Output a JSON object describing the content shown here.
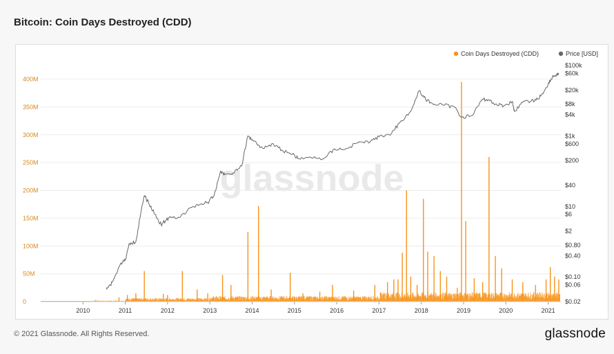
{
  "header": {
    "title": "Bitcoin: Coin Days Destroyed (CDD)"
  },
  "footer": {
    "copyright": "© 2021 Glassnode. All Rights Reserved.",
    "logo_text": "glassnode"
  },
  "watermark": "glassnode",
  "colors": {
    "cdd": "#f7931a",
    "price": "#666666",
    "left_axis": "#d8891f",
    "grid": "#ececec"
  },
  "chart_data": {
    "type": "line",
    "title": "Bitcoin: Coin Days Destroyed (CDD)",
    "legend": {
      "placement": "top-right",
      "entries": [
        "Coin Days Destroyed (CDD)",
        "Price [USD]"
      ]
    },
    "x_ticks": [
      "2010",
      "2011",
      "2012",
      "2013",
      "2014",
      "2015",
      "2016",
      "2017",
      "2018",
      "2019",
      "2020",
      "2021"
    ],
    "xlim": [
      2009.0,
      2021.3
    ],
    "y_left": {
      "ticks": [
        "0",
        "50M",
        "100M",
        "150M",
        "200M",
        "250M",
        "300M",
        "350M",
        "400M"
      ],
      "ylim": [
        0,
        400000000
      ]
    },
    "y_right": {
      "scale": "log",
      "ticks": [
        "$0.02",
        "$0.06",
        "$0.10",
        "$0.40",
        "$0.80",
        "$2",
        "$6",
        "$10",
        "$40",
        "$200",
        "$600",
        "$1k",
        "$4k",
        "$8k",
        "$20k",
        "$60k",
        "$100k"
      ]
    },
    "series": [
      {
        "name": "Coin Days Destroyed (CDD)",
        "axis": "left",
        "spikes": [
          [
            2010.3,
            3000000
          ],
          [
            2010.85,
            8000000
          ],
          [
            2011.05,
            12000000
          ],
          [
            2011.25,
            15000000
          ],
          [
            2011.45,
            55000000
          ],
          [
            2011.9,
            14000000
          ],
          [
            2012.0,
            12000000
          ],
          [
            2012.35,
            55000000
          ],
          [
            2012.7,
            22000000
          ],
          [
            2012.95,
            15000000
          ],
          [
            2013.3,
            48000000
          ],
          [
            2013.5,
            30000000
          ],
          [
            2013.9,
            125000000
          ],
          [
            2014.15,
            172000000
          ],
          [
            2014.45,
            22000000
          ],
          [
            2014.9,
            52000000
          ],
          [
            2015.2,
            15000000
          ],
          [
            2015.6,
            18000000
          ],
          [
            2015.9,
            30000000
          ],
          [
            2016.4,
            20000000
          ],
          [
            2016.9,
            30000000
          ],
          [
            2017.2,
            35000000
          ],
          [
            2017.35,
            40000000
          ],
          [
            2017.45,
            40000000
          ],
          [
            2017.55,
            88000000
          ],
          [
            2017.65,
            200000000
          ],
          [
            2017.75,
            45000000
          ],
          [
            2017.9,
            30000000
          ],
          [
            2018.05,
            185000000
          ],
          [
            2018.15,
            90000000
          ],
          [
            2018.3,
            82000000
          ],
          [
            2018.45,
            55000000
          ],
          [
            2018.6,
            45000000
          ],
          [
            2018.85,
            25000000
          ],
          [
            2018.95,
            395000000
          ],
          [
            2019.05,
            145000000
          ],
          [
            2019.25,
            42000000
          ],
          [
            2019.45,
            35000000
          ],
          [
            2019.6,
            260000000
          ],
          [
            2019.75,
            82000000
          ],
          [
            2019.9,
            60000000
          ],
          [
            2020.15,
            40000000
          ],
          [
            2020.4,
            35000000
          ],
          [
            2020.7,
            30000000
          ],
          [
            2020.95,
            40000000
          ],
          [
            2021.05,
            62000000
          ],
          [
            2021.15,
            45000000
          ],
          [
            2021.25,
            40000000
          ]
        ]
      },
      {
        "name": "Price [USD]",
        "axis": "right",
        "points": [
          [
            2010.55,
            0.05
          ],
          [
            2010.65,
            0.06
          ],
          [
            2010.75,
            0.1
          ],
          [
            2010.9,
            0.25
          ],
          [
            2011.0,
            0.3
          ],
          [
            2011.1,
            0.9
          ],
          [
            2011.25,
            1.0
          ],
          [
            2011.35,
            5.0
          ],
          [
            2011.45,
            20.0
          ],
          [
            2011.55,
            13.0
          ],
          [
            2011.7,
            6.0
          ],
          [
            2011.85,
            3.0
          ],
          [
            2011.95,
            4.0
          ],
          [
            2012.1,
            5.0
          ],
          [
            2012.3,
            5.0
          ],
          [
            2012.6,
            10.0
          ],
          [
            2012.8,
            12.0
          ],
          [
            2012.95,
            13.0
          ],
          [
            2013.1,
            20.0
          ],
          [
            2013.25,
            100.0
          ],
          [
            2013.35,
            80.0
          ],
          [
            2013.55,
            90.0
          ],
          [
            2013.75,
            140.0
          ],
          [
            2013.9,
            1000.0
          ],
          [
            2014.0,
            800.0
          ],
          [
            2014.25,
            450.0
          ],
          [
            2014.5,
            600.0
          ],
          [
            2014.7,
            400.0
          ],
          [
            2014.95,
            300.0
          ],
          [
            2015.1,
            230.0
          ],
          [
            2015.4,
            240.0
          ],
          [
            2015.7,
            230.0
          ],
          [
            2015.95,
            430.0
          ],
          [
            2016.2,
            420.0
          ],
          [
            2016.5,
            650.0
          ],
          [
            2016.8,
            700.0
          ],
          [
            2017.0,
            950.0
          ],
          [
            2017.3,
            1200.0
          ],
          [
            2017.5,
            2500.0
          ],
          [
            2017.75,
            5000.0
          ],
          [
            2017.95,
            19000.0
          ],
          [
            2018.1,
            11000.0
          ],
          [
            2018.3,
            8000.0
          ],
          [
            2018.55,
            7500.0
          ],
          [
            2018.8,
            6400.0
          ],
          [
            2018.95,
            3400.0
          ],
          [
            2019.2,
            3800.0
          ],
          [
            2019.45,
            11000.0
          ],
          [
            2019.6,
            10500.0
          ],
          [
            2019.75,
            8000.0
          ],
          [
            2019.95,
            7200.0
          ],
          [
            2020.15,
            9500.0
          ],
          [
            2020.2,
            5000.0
          ],
          [
            2020.4,
            9000.0
          ],
          [
            2020.6,
            9800.0
          ],
          [
            2020.75,
            11000.0
          ],
          [
            2020.9,
            18000.0
          ],
          [
            2021.0,
            30000.0
          ],
          [
            2021.1,
            47000.0
          ],
          [
            2021.2,
            55000.0
          ],
          [
            2021.25,
            58000.0
          ]
        ]
      }
    ]
  }
}
